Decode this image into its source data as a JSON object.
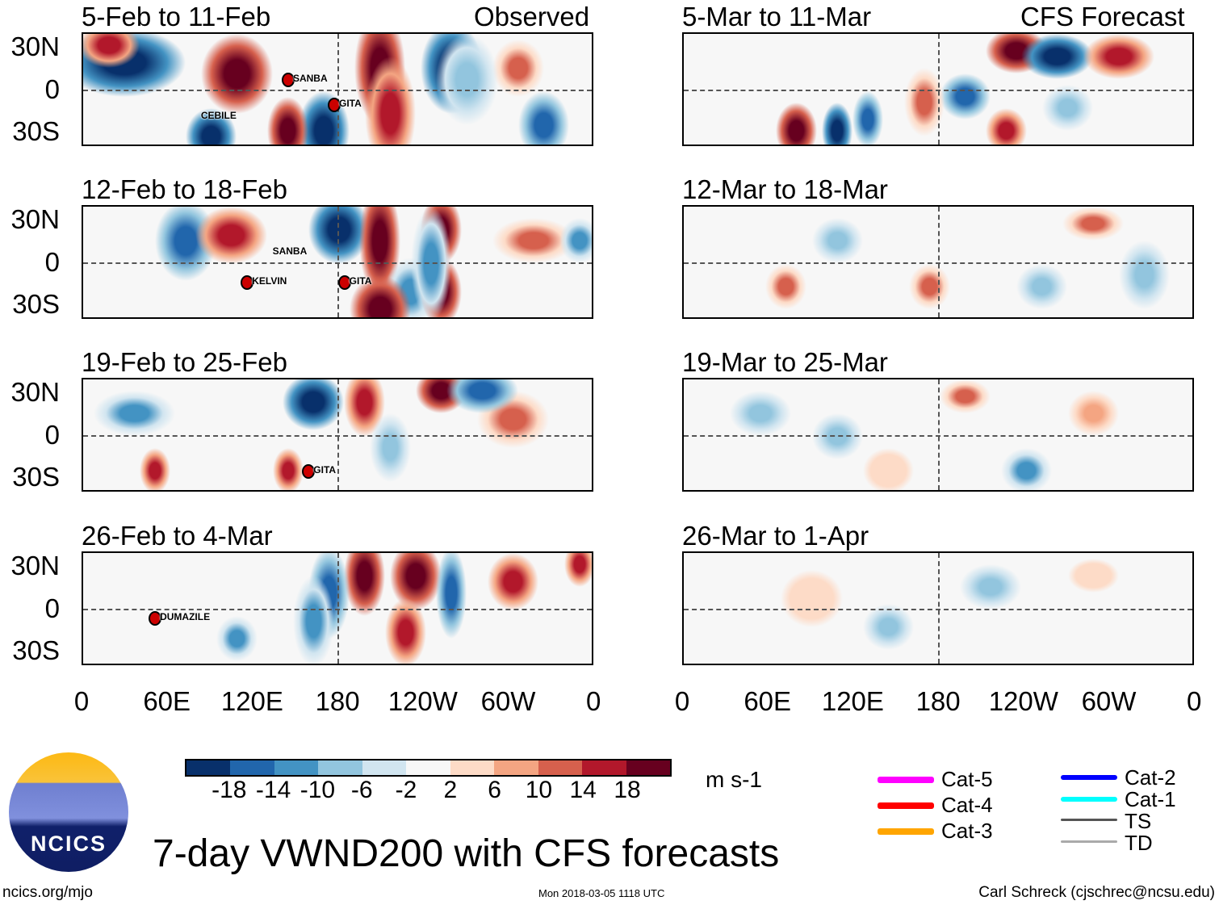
{
  "headers": {
    "observed": "Observed",
    "forecast": "CFS Forecast"
  },
  "panels_left": [
    {
      "title": "5-Feb to 11-Feb",
      "storms": [
        "SANBA",
        "CEBILE",
        "GITA"
      ]
    },
    {
      "title": "12-Feb to 18-Feb",
      "storms": [
        "SANBA",
        "KELVIN",
        "GITA"
      ]
    },
    {
      "title": "19-Feb to 25-Feb",
      "storms": [
        "GITA"
      ]
    },
    {
      "title": "26-Feb to 4-Mar",
      "storms": [
        "DUMAZILE"
      ]
    }
  ],
  "panels_right": [
    {
      "title": "5-Mar to 11-Mar"
    },
    {
      "title": "12-Mar to 18-Mar"
    },
    {
      "title": "19-Mar to 25-Mar"
    },
    {
      "title": "26-Mar to 1-Apr"
    }
  ],
  "lat_labels": [
    "30N",
    "0",
    "30S"
  ],
  "lon_labels": [
    "0",
    "60E",
    "120E",
    "180",
    "120W",
    "60W",
    "0"
  ],
  "colorbar": {
    "labels": [
      "-18",
      "-14",
      "-10",
      "-6",
      "-2",
      "2",
      "6",
      "10",
      "14",
      "18"
    ],
    "units": "m s-1",
    "colors": [
      "#08306b",
      "#2166ac",
      "#4393c3",
      "#92c5de",
      "#d1e5f0",
      "#f7f7f7",
      "#fddbc7",
      "#f4a582",
      "#d6604d",
      "#b2182b",
      "#67001f"
    ]
  },
  "legend": [
    {
      "label": "Cat-5",
      "color": "#ff00ff"
    },
    {
      "label": "Cat-4",
      "color": "#ff0000"
    },
    {
      "label": "Cat-3",
      "color": "#ffa500"
    },
    {
      "label": "Cat-2",
      "color": "#0000ff"
    },
    {
      "label": "Cat-1",
      "color": "#00ffff"
    },
    {
      "label": "TS",
      "color": "#555555"
    },
    {
      "label": "TD",
      "color": "#aaaaaa"
    }
  ],
  "title": "7-day VWND200 with CFS forecasts",
  "logo_text": "NCICS",
  "footer": {
    "left": "ncics.org/mjo",
    "center": "Mon 2018-03-05 1118 UTC",
    "right": "Carl Schreck (cjschrec@ncsu.edu)"
  }
}
